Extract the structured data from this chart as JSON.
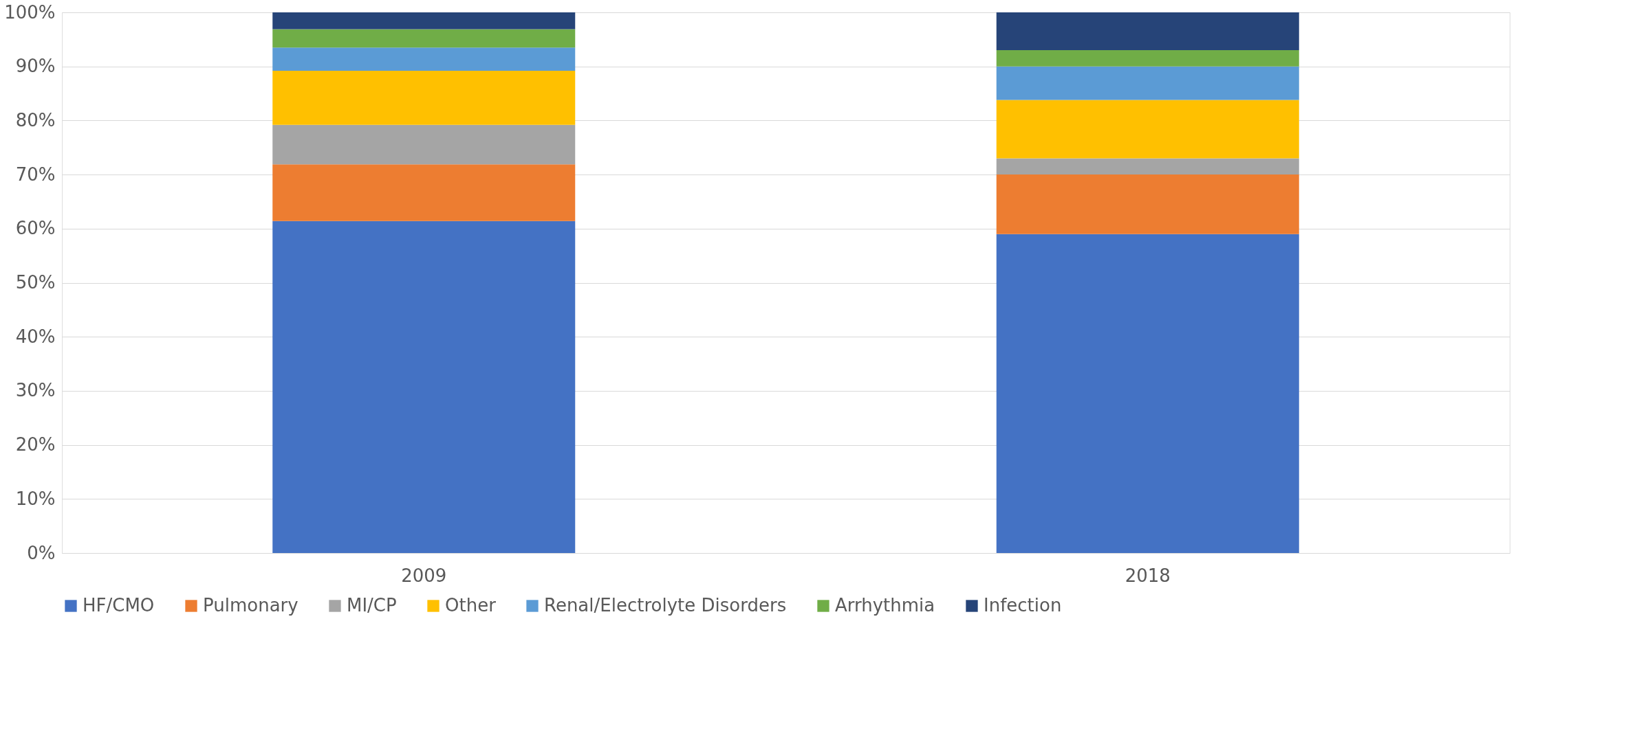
{
  "chart_data": {
    "type": "bar",
    "stacked": true,
    "categories": [
      "2009",
      "2018"
    ],
    "series": [
      {
        "name": "HF/CMO",
        "color": "#4472c4",
        "values": [
          61.4,
          59.0
        ]
      },
      {
        "name": "Pulmonary",
        "color": "#ed7d31",
        "values": [
          10.5,
          11.0
        ]
      },
      {
        "name": "MI/CP",
        "color": "#a5a5a5",
        "values": [
          7.3,
          3.0
        ]
      },
      {
        "name": "Other",
        "color": "#ffc000",
        "values": [
          10.0,
          10.8
        ]
      },
      {
        "name": "Renal/Electrolyte Disorders",
        "color": "#5b9bd5",
        "values": [
          4.3,
          6.2
        ]
      },
      {
        "name": "Arrhythmia",
        "color": "#70ad47",
        "values": [
          3.4,
          3.0
        ]
      },
      {
        "name": "Infection",
        "color": "#264478",
        "values": [
          3.1,
          7.0
        ]
      }
    ],
    "ylim": [
      0,
      100
    ],
    "yticks": [
      {
        "value": 0,
        "label": "0%"
      },
      {
        "value": 10,
        "label": "10%"
      },
      {
        "value": 20,
        "label": "20%"
      },
      {
        "value": 30,
        "label": "30%"
      },
      {
        "value": 40,
        "label": "40%"
      },
      {
        "value": 50,
        "label": "50%"
      },
      {
        "value": 60,
        "label": "60%"
      },
      {
        "value": 70,
        "label": "70%"
      },
      {
        "value": 80,
        "label": "80%"
      },
      {
        "value": 90,
        "label": "90%"
      },
      {
        "value": 100,
        "label": "100%"
      }
    ],
    "grid": "y",
    "legend": "bottom"
  }
}
